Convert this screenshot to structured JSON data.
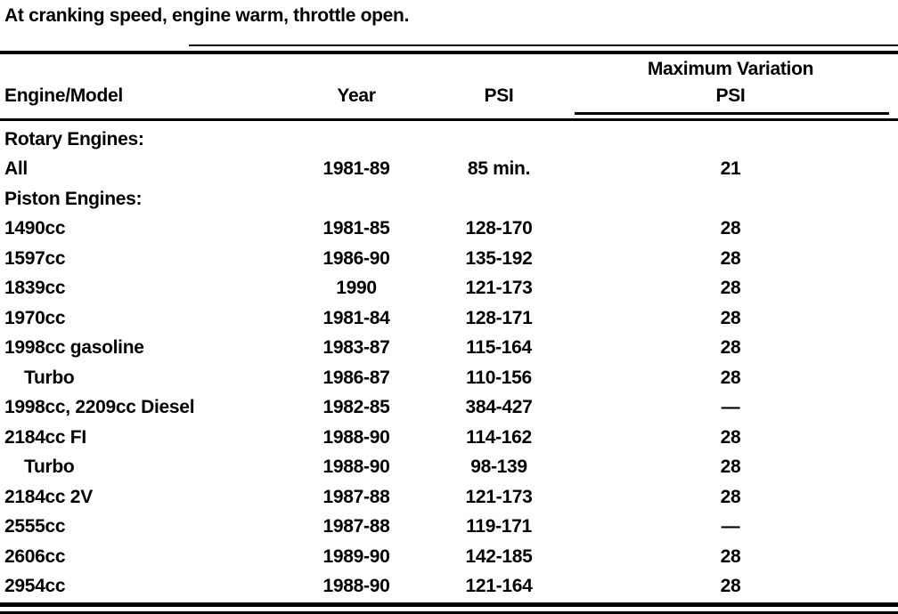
{
  "colors": {
    "ink": "#000000",
    "paper": "#ffffff"
  },
  "caption": "At cranking speed, engine warm, throttle open.",
  "table": {
    "headers": {
      "engine_model": "Engine/Model",
      "year": "Year",
      "psi": "PSI",
      "max_variation_line1": "Maximum Variation",
      "max_variation_line2": "PSI"
    },
    "rows": [
      {
        "engine": "Rotary Engines:",
        "year": "",
        "psi": "",
        "max_var": "",
        "section": true
      },
      {
        "engine": "All",
        "year": "1981-89",
        "psi": "85 min.",
        "max_var": "21"
      },
      {
        "engine": "Piston Engines:",
        "year": "",
        "psi": "",
        "max_var": "",
        "section": true
      },
      {
        "engine": "1490cc",
        "year": "1981-85",
        "psi": "128-170",
        "max_var": "28"
      },
      {
        "engine": "1597cc",
        "year": "1986-90",
        "psi": "135-192",
        "max_var": "28"
      },
      {
        "engine": "1839cc",
        "year": "1990",
        "psi": "121-173",
        "max_var": "28"
      },
      {
        "engine": "1970cc",
        "year": "1981-84",
        "psi": "128-171",
        "max_var": "28"
      },
      {
        "engine": "1998cc gasoline",
        "year": "1983-87",
        "psi": "115-164",
        "max_var": "28"
      },
      {
        "engine": "Turbo",
        "year": "1986-87",
        "psi": "110-156",
        "max_var": "28",
        "indent": true
      },
      {
        "engine": "1998cc, 2209cc Diesel",
        "year": "1982-85",
        "psi": "384-427",
        "max_var": "—"
      },
      {
        "engine": "2184cc FI",
        "year": "1988-90",
        "psi": "114-162",
        "max_var": "28"
      },
      {
        "engine": "Turbo",
        "year": "1988-90",
        "psi": "98-139",
        "max_var": "28",
        "indent": true
      },
      {
        "engine": "2184cc 2V",
        "year": "1987-88",
        "psi": "121-173",
        "max_var": "28"
      },
      {
        "engine": "2555cc",
        "year": "1987-88",
        "psi": "119-171",
        "max_var": "—"
      },
      {
        "engine": "2606cc",
        "year": "1989-90",
        "psi": "142-185",
        "max_var": "28"
      },
      {
        "engine": "2954cc",
        "year": "1988-90",
        "psi": "121-164",
        "max_var": "28"
      }
    ]
  }
}
